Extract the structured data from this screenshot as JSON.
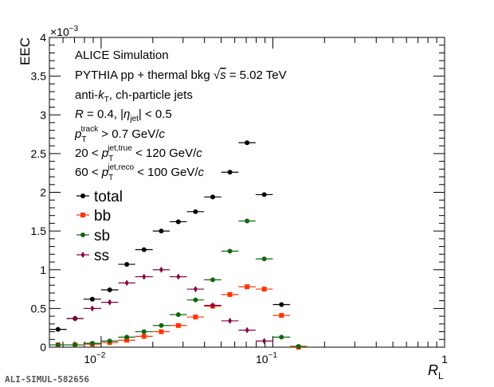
{
  "footer_label": "ALI-SIMUL-582656",
  "chart_data": {
    "type": "scatter",
    "x_scale": "log",
    "xlim": [
      0.005,
      1.0
    ],
    "ylim": [
      0,
      0.004
    ],
    "ylabel": "EEC",
    "xlabel": "R",
    "xlabel_sub": "L",
    "y_exponent_label": "×10",
    "y_exponent_power": "−3",
    "y_ticks": [
      0,
      0.5,
      1,
      1.5,
      2,
      2.5,
      3,
      3.5,
      4
    ],
    "y_tick_labels": [
      "0",
      "0.5",
      "1",
      "1.5",
      "2",
      "2.5",
      "3",
      "3.5",
      "4"
    ],
    "x_major_ticks": [
      {
        "value": 0.01,
        "base": "10",
        "exp": "−2"
      },
      {
        "value": 0.1,
        "base": "10",
        "exp": "−1"
      },
      {
        "value": 1.0,
        "base": "1",
        "exp": ""
      }
    ],
    "annotations": [
      "ALICE Simulation",
      "PYTHIA pp + thermal bkg √s = 5.02 TeV",
      "anti-kT, ch-particle jets",
      "R = 0.4, |ηjet| < 0.5",
      "pTtrack > 0.7 GeV/c",
      "20 < pTjet,true < 120 GeV/c",
      "60 < pTjet,reco < 100 GeV/c"
    ],
    "legend_position": "left",
    "bin_edges": [
      0.005,
      0.0063,
      0.0079,
      0.01,
      0.0126,
      0.0158,
      0.02,
      0.0251,
      0.0316,
      0.0398,
      0.0501,
      0.0631,
      0.0794,
      0.1,
      0.126,
      0.158,
      0.2,
      0.251,
      0.316,
      0.398,
      0.501,
      0.631,
      0.794
    ],
    "series": [
      {
        "name": "total",
        "color": "#000000",
        "marker": "circle",
        "values": [
          0.23,
          0.37,
          0.62,
          0.74,
          1.07,
          1.26,
          1.5,
          1.62,
          1.75,
          1.94,
          2.26,
          2.64,
          1.97,
          0.55,
          0.0
        ]
      },
      {
        "name": "bb",
        "color": "#ff3300",
        "marker": "square",
        "values": [
          0.03,
          0.03,
          0.04,
          0.06,
          0.09,
          0.14,
          0.2,
          0.28,
          0.39,
          0.53,
          0.68,
          0.78,
          0.75,
          0.41,
          0.0
        ]
      },
      {
        "name": "sb",
        "color": "#116611",
        "marker": "circle",
        "values": [
          0.03,
          0.03,
          0.05,
          0.08,
          0.13,
          0.2,
          0.28,
          0.42,
          0.61,
          0.87,
          1.24,
          1.63,
          1.14,
          0.13,
          0.01
        ]
      },
      {
        "name": "ss",
        "color": "#880044",
        "marker": "diamond",
        "values": [
          null,
          0.37,
          0.5,
          0.58,
          0.83,
          0.91,
          1.0,
          0.91,
          0.75,
          0.54,
          0.34,
          0.22,
          0.08,
          null,
          null
        ]
      }
    ]
  }
}
